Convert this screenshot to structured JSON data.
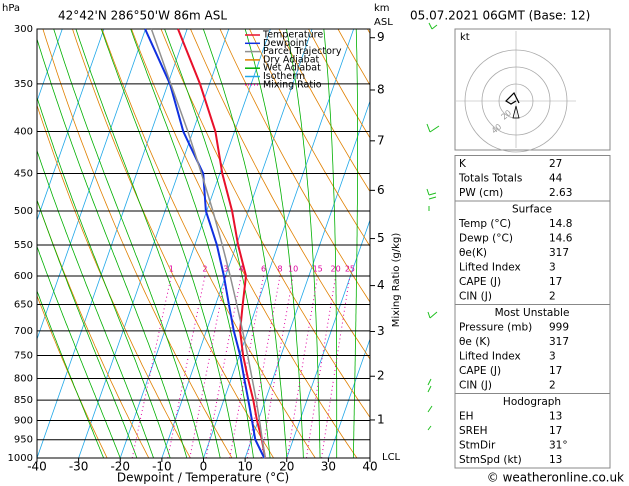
{
  "chart_data": {
    "type": "skewt",
    "title": "42°42'N  286°50'W  86m  ASL",
    "subtitle": "05.07.2021  06GMT  (Base: 12)",
    "ylabel": "hPa",
    "y2label": "km",
    "y2label_2": "ASL",
    "xlabel": "Dewpoint / Temperature (°C)",
    "mixing_label": "Mixing Ratio (g/kg)",
    "lcl_label": "LCL",
    "pressure_levels": [
      1000,
      950,
      900,
      850,
      800,
      750,
      700,
      650,
      600,
      550,
      500,
      450,
      400,
      350,
      300
    ],
    "series": [
      {
        "name": "Temperature",
        "color": "#e8102a",
        "values": [
          14.8,
          12.5,
          9.7,
          7.1,
          4.0,
          0.9,
          -1.9,
          -3.5,
          -5.1,
          -9.6,
          -13.9,
          -19.4,
          -24.6,
          -32.3,
          -42.2
        ]
      },
      {
        "name": "Dewpoint",
        "color": "#1030e0",
        "values": [
          14.6,
          10.9,
          8.5,
          5.9,
          3.1,
          0.2,
          -3.4,
          -6.8,
          -10.4,
          -14.7,
          -20.2,
          -24.0,
          -32.3,
          -39.5,
          -50.1
        ]
      },
      {
        "name": "Parcel Trajectory",
        "color": "#909090",
        "values": [
          14.8,
          12.6,
          10.3,
          7.8,
          5.0,
          2.0,
          -1.3,
          -4.9,
          -8.9,
          -13.4,
          -18.5,
          -24.4,
          -31.2,
          -39.3,
          -48.6
        ]
      }
    ],
    "background": [
      {
        "name": "Dry Adiabat",
        "color": "#e08000"
      },
      {
        "name": "Wet Adiabat",
        "color": "#00b000"
      },
      {
        "name": "Isotherm",
        "color": "#20a8e8"
      },
      {
        "name": "Mixing Ratio",
        "color": "#e000a0"
      }
    ],
    "mixing_ratios": [
      1,
      2,
      3,
      4,
      6,
      8,
      10,
      15,
      20,
      25
    ],
    "xlim": [
      -40,
      40
    ],
    "xticks": [
      -40,
      -30,
      -20,
      -10,
      0,
      10,
      20,
      30,
      40
    ],
    "ylim": [
      1000,
      300
    ],
    "yticks": [
      300,
      350,
      400,
      450,
      500,
      550,
      600,
      650,
      700,
      750,
      800,
      850,
      900,
      950,
      1000
    ],
    "log_y": true,
    "y2ticks": [
      1,
      2,
      3,
      4,
      5,
      6,
      7,
      8,
      9
    ]
  },
  "hodograph": {
    "unit": "kt",
    "ring_labels": [
      20,
      40
    ]
  },
  "stats": [
    {
      "rows": [
        [
          "K",
          27
        ],
        [
          "Totals Totals",
          44
        ],
        [
          "PW (cm)",
          2.63
        ]
      ]
    },
    {
      "title": "Surface",
      "rows": [
        [
          "Temp (°C)",
          14.8
        ],
        [
          "Dewp (°C)",
          14.6
        ],
        [
          "θe(K)",
          317
        ],
        [
          "Lifted Index",
          3
        ],
        [
          "CAPE (J)",
          17
        ],
        [
          "CIN (J)",
          2
        ]
      ]
    },
    {
      "title": "Most Unstable",
      "rows": [
        [
          "Pressure (mb)",
          999
        ],
        [
          "θe (K)",
          317
        ],
        [
          "Lifted Index",
          3
        ],
        [
          "CAPE (J)",
          17
        ],
        [
          "CIN (J)",
          2
        ]
      ]
    },
    {
      "title": "Hodograph",
      "rows": [
        [
          "EH",
          13
        ],
        [
          "SREH",
          17
        ],
        [
          "StmDir",
          "31°"
        ],
        [
          "StmSpd (kt)",
          13
        ]
      ]
    }
  ],
  "footer": "© weatheronline.co.uk"
}
